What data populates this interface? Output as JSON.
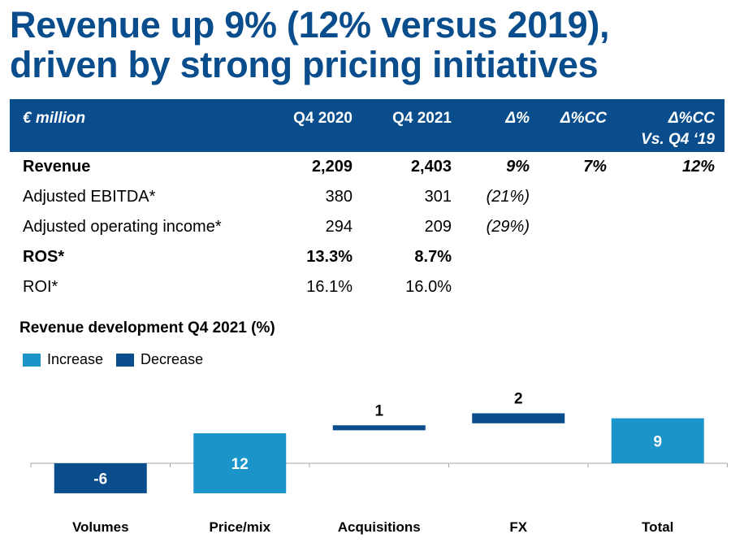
{
  "title": {
    "line1": "Revenue up 9% (12% versus 2019),",
    "line2": "driven by strong pricing initiatives"
  },
  "table": {
    "headers": [
      "€ million",
      "Q4 2020",
      "Q4 2021",
      "Δ%",
      "Δ%CC",
      "Δ%CC",
      "Vs. Q4 ‘19"
    ],
    "rows": [
      {
        "label": "Revenue",
        "q4_2020": "2,209",
        "q4_2021": "2,403",
        "delta": "9%",
        "delta_cc": "7%",
        "delta_cc_19": "12%",
        "bold": true
      },
      {
        "label": "Adjusted EBITDA*",
        "q4_2020": "380",
        "q4_2021": "301",
        "delta": "(21%)",
        "delta_cc": "",
        "delta_cc_19": "",
        "bold": false
      },
      {
        "label": "Adjusted operating income*",
        "q4_2020": "294",
        "q4_2021": "209",
        "delta": "(29%)",
        "delta_cc": "",
        "delta_cc_19": "",
        "bold": false
      },
      {
        "label": "ROS*",
        "q4_2020": "13.3%",
        "q4_2021": "8.7%",
        "delta": "",
        "delta_cc": "",
        "delta_cc_19": "",
        "bold": true
      },
      {
        "label": "ROI*",
        "q4_2020": "16.1%",
        "q4_2021": "16.0%",
        "delta": "",
        "delta_cc": "",
        "delta_cc_19": "",
        "bold": false
      }
    ]
  },
  "chart_data": {
    "type": "bar",
    "title": "Revenue development Q4 2021 (%)",
    "legend": [
      {
        "name": "Increase",
        "color": "#1a94c9"
      },
      {
        "name": "Decrease",
        "color": "#0a4d8c"
      }
    ],
    "legend_position": "top-left",
    "categories": [
      "Volumes",
      "Price/mix",
      "Acquisitions",
      "FX",
      "Total"
    ],
    "bars": [
      {
        "label": "Volumes",
        "start": 0,
        "end": -6,
        "value_label": "-6",
        "kind": "Decrease"
      },
      {
        "label": "Price/mix",
        "start": -6,
        "end": 6,
        "value_label": "12",
        "kind": "Increase"
      },
      {
        "label": "Acquisitions",
        "start": 6.6,
        "end": 7.6,
        "value_label": "1",
        "kind": "Decrease"
      },
      {
        "label": "FX",
        "start": 8.0,
        "end": 10.0,
        "value_label": "2",
        "kind": "Decrease"
      },
      {
        "label": "Total",
        "start": 0,
        "end": 9,
        "value_label": "9",
        "kind": "Increase"
      }
    ]
  }
}
